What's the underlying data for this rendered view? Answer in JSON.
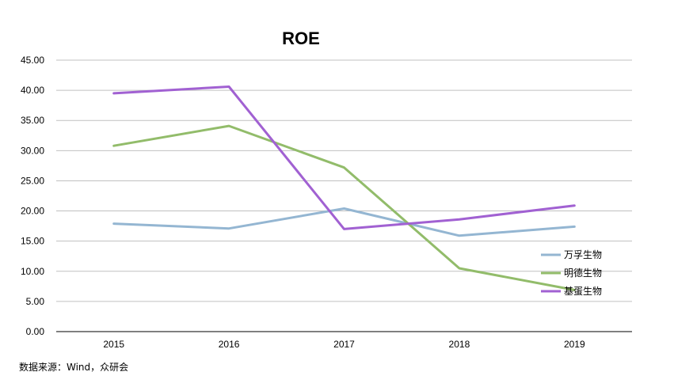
{
  "chart_data": {
    "type": "line",
    "title": "ROE",
    "categories": [
      "2015",
      "2016",
      "2017",
      "2018",
      "2019"
    ],
    "ylim": [
      0,
      45
    ],
    "yticks": [
      "0.00",
      "5.00",
      "10.00",
      "15.00",
      "20.00",
      "25.00",
      "30.00",
      "35.00",
      "40.00",
      "45.00"
    ],
    "grid": true,
    "legend_position": "bottom-right",
    "series": [
      {
        "name": "万孚生物",
        "color": "#94b6d2",
        "values": [
          17.9,
          17.1,
          20.4,
          15.9,
          17.4
        ]
      },
      {
        "name": "明德生物",
        "color": "#92bc6a",
        "values": [
          30.8,
          34.1,
          27.2,
          10.5,
          6.9
        ]
      },
      {
        "name": "基蛋生物",
        "color": "#a161d2",
        "values": [
          39.5,
          40.6,
          17.0,
          18.6,
          20.9
        ]
      }
    ]
  },
  "source_note": "数据来源：Wind，众研会"
}
